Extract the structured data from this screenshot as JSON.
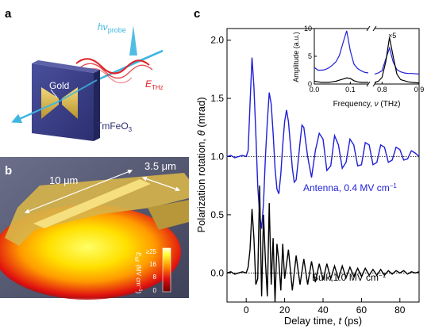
{
  "panels": {
    "a": {
      "letter": "a",
      "gold_label": "Gold",
      "material_label": "TmFeO",
      "material_sub": "3",
      "probe_label": "hν",
      "probe_sub": "probe",
      "thz_label": "E",
      "thz_sub": "THz",
      "colors": {
        "probe": "#3fb6e0",
        "thz": "#e01f26",
        "slab": "#3b3f86",
        "gold": "#e3c45a"
      }
    },
    "b": {
      "letter": "b",
      "length_label": "10 μm",
      "gap_label": "3.5 μm",
      "colorbar": {
        "title_main": "E",
        "title_sub": "NF",
        "title_unit": "(MV cm",
        "title_exp": "−1",
        "title_close": ")",
        "ticks": [
          "≥25",
          "16",
          "8",
          "0"
        ],
        "colors": [
          "#ffffe0",
          "#ffff33",
          "#ff9900",
          "#e01010",
          "#700000"
        ]
      }
    },
    "c": {
      "letter": "c",
      "ylabel_main": "Polarization rotation, ",
      "ylabel_sym": "θ",
      "ylabel_unit": " (mrad)",
      "xlabel_main": "Delay time, ",
      "xlabel_sym": "t",
      "xlabel_unit": " (ps)",
      "antenna_label": "Antenna, 0.4 MV cm",
      "antenna_exp": "−1",
      "bulk_label": "Bulk,1.0 MV cm",
      "bulk_exp": "−1",
      "inset": {
        "ylabel": "Amplitude (a.u.)",
        "xlabel_main": "Frequency, ",
        "xlabel_sym": "ν",
        "xlabel_unit": " (THz)",
        "x_ticks": [
          "0.0",
          "0.1",
          "0.8",
          "0.9"
        ],
        "y_ticks": [
          "0",
          "5",
          "10"
        ],
        "x5_label": "×5"
      },
      "colors": {
        "antenna": "#1f1fd8",
        "bulk": "#000000"
      }
    }
  },
  "chart_data": [
    {
      "type": "line",
      "title": "",
      "xlabel": "Delay time, t (ps)",
      "ylabel": "Polarization rotation, θ (mrad)",
      "xlim": [
        -10,
        90
      ],
      "ylim": [
        -0.25,
        2.1
      ],
      "x_ticks": [
        0,
        20,
        40,
        60,
        80
      ],
      "y_ticks": [
        0.0,
        0.5,
        1.0,
        1.5,
        2.0
      ],
      "series": [
        {
          "name": "Antenna, 0.4 MV cm−1",
          "baseline": 1.0,
          "x": [
            -10,
            -8,
            -6,
            -4,
            -2,
            0,
            1,
            2,
            3,
            4,
            5,
            6,
            7,
            8,
            9,
            10,
            11,
            12,
            13,
            14,
            15,
            16,
            17,
            18,
            19,
            20,
            21,
            22,
            23,
            24,
            25,
            26,
            27,
            28,
            29,
            30,
            32,
            34,
            36,
            38,
            40,
            42,
            44,
            46,
            48,
            50,
            52,
            54,
            56,
            58,
            60,
            62,
            64,
            66,
            68,
            70,
            72,
            74,
            76,
            78,
            80,
            82,
            84,
            86,
            88,
            90
          ],
          "y": [
            1.0,
            1.01,
            0.99,
            1.0,
            1.01,
            1.0,
            1.05,
            1.45,
            1.85,
            1.6,
            1.2,
            0.75,
            0.5,
            0.38,
            0.6,
            1.0,
            1.3,
            1.55,
            1.45,
            1.2,
            0.9,
            0.72,
            0.68,
            0.85,
            1.1,
            1.3,
            1.4,
            1.3,
            1.1,
            0.9,
            0.78,
            0.8,
            0.95,
            1.12,
            1.27,
            1.25,
            1.0,
            0.82,
            1.05,
            1.2,
            1.15,
            0.88,
            0.92,
            1.18,
            1.1,
            0.9,
            0.95,
            1.15,
            1.1,
            0.92,
            0.93,
            1.12,
            1.1,
            0.93,
            0.95,
            1.1,
            1.08,
            0.95,
            0.97,
            1.08,
            1.06,
            0.97,
            0.98,
            1.05,
            1.03,
            1.0
          ]
        },
        {
          "name": "Bulk,1.0 MV cm−1",
          "baseline": 0.0,
          "x": [
            -10,
            -8,
            -6,
            -4,
            -2,
            0,
            1,
            2,
            3,
            4,
            5,
            6,
            7,
            8,
            9,
            10,
            11,
            12,
            13,
            14,
            15,
            16,
            17,
            18,
            19,
            20,
            22,
            24,
            26,
            28,
            30,
            32,
            34,
            36,
            38,
            40,
            42,
            44,
            46,
            48,
            50,
            52,
            54,
            56,
            58,
            60,
            62,
            64,
            66,
            68,
            70,
            72,
            74,
            76,
            78,
            80,
            82,
            84,
            86,
            88,
            90
          ],
          "y": [
            0.0,
            0.01,
            -0.01,
            0.0,
            0.01,
            0.0,
            0.05,
            0.2,
            0.55,
            0.3,
            -0.1,
            -0.05,
            0.75,
            -0.2,
            0.5,
            0.1,
            -0.2,
            0.6,
            -0.1,
            0.3,
            -0.25,
            0.25,
            0.1,
            -0.15,
            0.25,
            -0.05,
            0.2,
            -0.15,
            0.15,
            -0.1,
            0.12,
            -0.1,
            0.1,
            -0.08,
            0.08,
            -0.06,
            0.08,
            -0.05,
            0.06,
            -0.05,
            0.06,
            -0.04,
            0.05,
            -0.03,
            0.04,
            -0.03,
            0.04,
            -0.02,
            0.03,
            -0.02,
            0.03,
            -0.02,
            0.02,
            -0.01,
            0.02,
            0.0,
            0.02,
            -0.01,
            0.01,
            0.0,
            0.01
          ]
        }
      ],
      "inset": {
        "type": "line",
        "xlabel": "Frequency, ν (THz)",
        "ylabel": "Amplitude (a.u.)",
        "ylim": [
          0,
          10
        ],
        "axis_break": true,
        "x_ticks": [
          0.0,
          0.1,
          0.8,
          0.9
        ],
        "y_ticks": [
          0,
          5,
          10
        ],
        "series": [
          {
            "name": "Antenna",
            "x": [
              0.0,
              0.01,
              0.02,
              0.03,
              0.04,
              0.05,
              0.06,
              0.07,
              0.08,
              0.09,
              0.1,
              0.11,
              0.12,
              0.13,
              0.14,
              0.15,
              0.78,
              0.79,
              0.8,
              0.81,
              0.82,
              0.83,
              0.84,
              0.85,
              0.86,
              0.87,
              0.88,
              0.9
            ],
            "y": [
              3.0,
              2.5,
              2.5,
              2.6,
              2.9,
              3.4,
              4.0,
              5.2,
              7.5,
              9.6,
              6.0,
              3.6,
              2.8,
              2.4,
              2.1,
              2.0,
              1.8,
              2.0,
              2.4,
              4.5,
              6.5,
              4.0,
              2.6,
              2.2,
              2.0,
              1.9,
              1.9,
              1.8
            ]
          },
          {
            "name": "Bulk",
            "x": [
              0.0,
              0.01,
              0.02,
              0.03,
              0.04,
              0.05,
              0.06,
              0.07,
              0.08,
              0.09,
              0.1,
              0.11,
              0.12,
              0.13,
              0.14,
              0.15,
              0.78,
              0.79,
              0.8,
              0.81,
              0.82,
              0.83,
              0.84,
              0.85,
              0.86,
              0.87,
              0.88,
              0.9
            ],
            "y": [
              0.5,
              0.4,
              0.3,
              0.3,
              0.3,
              0.4,
              0.5,
              0.7,
              0.9,
              1.1,
              1.0,
              0.6,
              0.4,
              0.3,
              0.3,
              0.3,
              0.3,
              0.5,
              1.2,
              4.0,
              8.4,
              5.0,
              1.8,
              0.8,
              0.6,
              0.4,
              0.3,
              0.2
            ]
          }
        ]
      }
    }
  ]
}
